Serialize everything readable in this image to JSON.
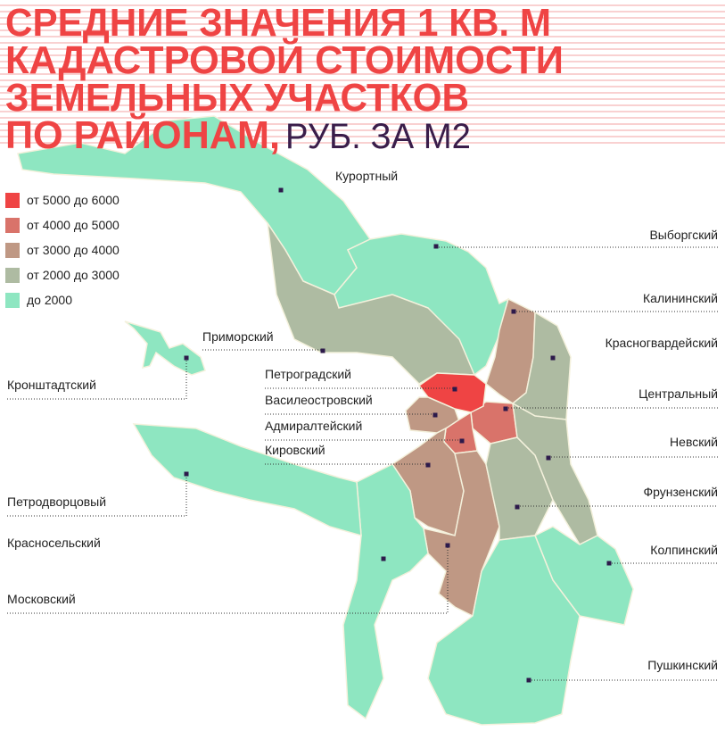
{
  "title": {
    "lines": [
      "СРЕДНИЕ ЗНАЧЕНИЯ 1 КВ. М",
      "КАДАСТРОВОЙ СТОИМОСТИ",
      "ЗЕМЕЛЬНЫХ УЧАСТКОВ",
      "ПО РАЙОНАМ,"
    ],
    "unit": "РУБ. ЗА М2"
  },
  "legend": {
    "items": [
      {
        "label": "от 5000 до 6000",
        "color": "#ef4444"
      },
      {
        "label": "от 4000 до 5000",
        "color": "#d9736a"
      },
      {
        "label": "от 3000 до 4000",
        "color": "#bf9884"
      },
      {
        "label": "от 2000 до 3000",
        "color": "#aebba2"
      },
      {
        "label": "до 2000",
        "color": "#8ee6c1"
      }
    ]
  },
  "districts": [
    {
      "name": "Курортный",
      "color": "#8ee6c1"
    },
    {
      "name": "Выборгский",
      "color": "#8ee6c1"
    },
    {
      "name": "Приморский",
      "color": "#aebba2"
    },
    {
      "name": "Калининский",
      "color": "#bf9884"
    },
    {
      "name": "Красногвардейский",
      "color": "#aebba2"
    },
    {
      "name": "Центральный",
      "color": "#d9736a"
    },
    {
      "name": "Петроградский",
      "color": "#ef4444"
    },
    {
      "name": "Василеостровский",
      "color": "#bf9884"
    },
    {
      "name": "Адмиралтейский",
      "color": "#d9736a"
    },
    {
      "name": "Кировский",
      "color": "#bf9884"
    },
    {
      "name": "Московский",
      "color": "#bf9884"
    },
    {
      "name": "Фрунзенский",
      "color": "#aebba2"
    },
    {
      "name": "Невский",
      "color": "#aebba2"
    },
    {
      "name": "Колпинский",
      "color": "#8ee6c1"
    },
    {
      "name": "Пушкинский",
      "color": "#8ee6c1"
    },
    {
      "name": "Красносельский",
      "color": "#8ee6c1"
    },
    {
      "name": "Петродворцовый",
      "color": "#8ee6c1"
    },
    {
      "name": "Кронштадтский",
      "color": "#8ee6c1"
    }
  ]
}
